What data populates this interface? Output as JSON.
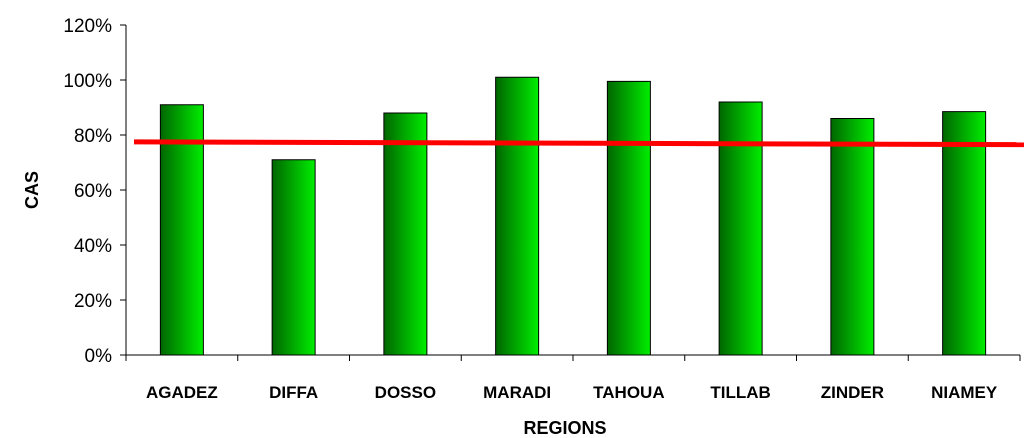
{
  "chart_data": {
    "type": "bar",
    "categories": [
      "AGADEZ",
      "DIFFA",
      "DOSSO",
      "MARADI",
      "TAHOUA",
      "TILLAB",
      "ZINDER",
      "NIAMEY"
    ],
    "values": [
      91,
      71,
      88,
      101,
      99.5,
      92,
      86,
      88.5
    ],
    "xlabel": "REGIONS",
    "ylabel": "CAS",
    "ylim": [
      0,
      120
    ],
    "yticks": [
      0,
      20,
      40,
      60,
      80,
      100,
      120
    ],
    "ytick_format": "%",
    "grid": false,
    "reference_line": {
      "start_value": 77.5,
      "end_value": 76.5,
      "color": "#ff0000"
    },
    "bar_gradient": [
      "#006600",
      "#00ee00"
    ]
  }
}
